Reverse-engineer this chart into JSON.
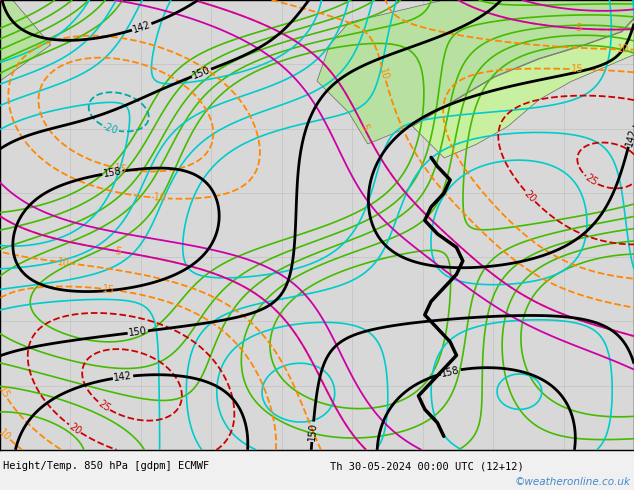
{
  "title_left": "Height/Temp. 850 hPa [gdpm] ECMWF",
  "title_right": "Th 30-05-2024 00:00 UTC (12+12)",
  "watermark": "©weatheronline.co.uk",
  "fig_width": 6.34,
  "fig_height": 4.9,
  "dpi": 100,
  "ocean_color": "#d8d8d8",
  "land_color_green": "#b8e0a0",
  "land_color_bright": "#c8f0a0",
  "bottom_bar_color": "#f0f0f0",
  "label_fontsize": 7.5,
  "watermark_color": "#4488cc",
  "watermark_fontsize": 7.5,
  "grid_line_color": "#aaaaaa",
  "grid_alpha": 0.6,
  "black_contour_color": "#000000",
  "orange_contour_color": "#ff8800",
  "red_contour_color": "#cc0000",
  "cyan_contour_color": "#00aaaa",
  "green_contour_color": "#44bb00",
  "magenta_contour_color": "#cc00aa",
  "darkblue_contour_color": "#0000aa"
}
